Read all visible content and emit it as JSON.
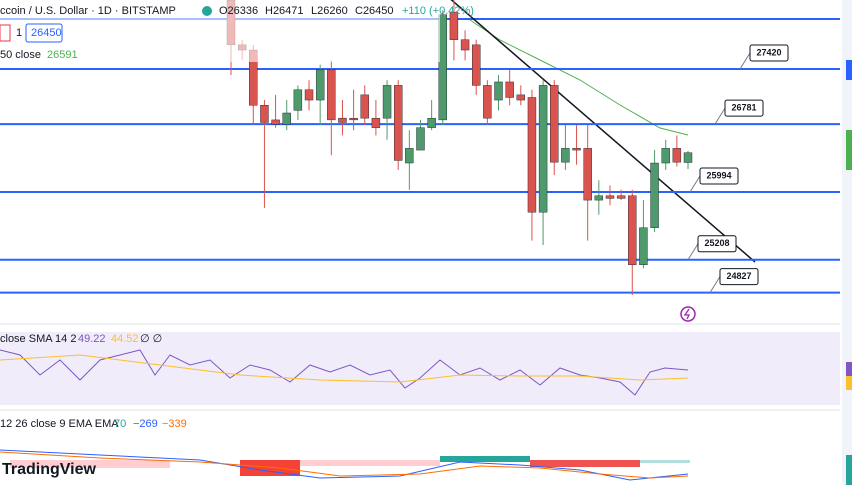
{
  "header": {
    "symbol": "ccoin / U.S. Dollar · 1D · BITSTAMP",
    "open": "O26336",
    "high": "H26471",
    "low": "L26260",
    "close": "C26450",
    "change": "+110 (+0.42%)",
    "interval_qty": "1",
    "price": "26450",
    "ma_label": "50 close",
    "ma_value": "26591"
  },
  "rsi": {
    "label": "close SMA 14 2",
    "rsi_value": "49.22",
    "sma_value": "44.52",
    "extra": "∅ ∅"
  },
  "macd": {
    "label": "12 26 close 9 EMA EMA",
    "hist": "70",
    "macd_value": "−269",
    "signal": "−339"
  },
  "logo": "TradingView",
  "price_range": [
    24510,
    28220
  ],
  "levels": [
    27420,
    26781,
    25994,
    25208,
    24827
  ],
  "candles": [
    [
      28220,
      28220,
      27350,
      27700
    ],
    [
      27700,
      27760,
      27520,
      27640
    ],
    [
      27640,
      27700,
      26770,
      27000
    ],
    [
      27000,
      27060,
      25810,
      26800
    ],
    [
      26830,
      27120,
      26740,
      26780
    ],
    [
      26780,
      27060,
      26710,
      26910
    ],
    [
      26940,
      27230,
      26830,
      27180
    ],
    [
      27180,
      27290,
      26940,
      27060
    ],
    [
      27060,
      27470,
      26770,
      27410
    ],
    [
      27410,
      27520,
      26420,
      26830
    ],
    [
      26850,
      27060,
      26650,
      26800
    ],
    [
      26850,
      27180,
      26710,
      26830
    ],
    [
      27120,
      27230,
      26770,
      26850
    ],
    [
      26850,
      27060,
      26650,
      26740
    ],
    [
      26850,
      27290,
      26600,
      27230
    ],
    [
      27230,
      27290,
      26250,
      26360
    ],
    [
      26330,
      26710,
      26020,
      26500
    ],
    [
      26480,
      26830,
      26480,
      26740
    ],
    [
      26740,
      27060,
      26710,
      26850
    ],
    [
      26830,
      28100,
      26770,
      28050
    ],
    [
      28080,
      28220,
      27520,
      27760
    ],
    [
      27760,
      27870,
      27520,
      27640
    ],
    [
      27700,
      27760,
      27120,
      27230
    ],
    [
      27230,
      27290,
      26770,
      26850
    ],
    [
      27060,
      27350,
      26940,
      27270
    ],
    [
      27270,
      27410,
      27000,
      27090
    ],
    [
      27120,
      27230,
      27000,
      27060
    ],
    [
      27090,
      27180,
      25430,
      25760
    ],
    [
      25760,
      27290,
      25380,
      27230
    ],
    [
      27230,
      27290,
      26190,
      26340
    ],
    [
      26340,
      26770,
      26250,
      26500
    ],
    [
      26500,
      26770,
      26310,
      26480
    ],
    [
      26500,
      26770,
      25430,
      25900
    ],
    [
      25900,
      26130,
      25730,
      25950
    ],
    [
      25950,
      26070,
      25840,
      25920
    ],
    [
      25950,
      26020,
      25900,
      25920
    ],
    [
      25950,
      26020,
      24800,
      25150
    ],
    [
      25150,
      25900,
      25110,
      25580
    ],
    [
      25580,
      26480,
      25530,
      26330
    ],
    [
      26330,
      26600,
      26250,
      26500
    ],
    [
      26500,
      26650,
      26290,
      26340
    ],
    [
      26336,
      26471,
      26260,
      26450
    ]
  ]
}
